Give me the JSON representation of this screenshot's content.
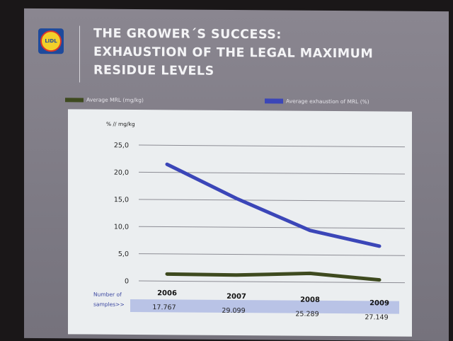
{
  "slide": {
    "title_lines": [
      "THE GROWER´S SUCCESS:",
      "EXHAUSTION OF THE LEGAL MAXIMUM",
      "RESIDUE LEVELS"
    ],
    "logo_text": "LIDL"
  },
  "colors": {
    "mrl_series": "#3e4a1f",
    "exhaustion_series": "#3b46b8",
    "samples_bar": "#b9c3e6"
  },
  "chart_data": {
    "type": "line",
    "title": "",
    "xlabel": "",
    "ylabel": "% // mg/kg",
    "ylim": [
      0,
      25
    ],
    "yticks": [
      {
        "value": 0,
        "label": "0"
      },
      {
        "value": 5,
        "label": "5,0"
      },
      {
        "value": 10,
        "label": "10,0"
      },
      {
        "value": 15,
        "label": "15,0"
      },
      {
        "value": 20,
        "label": "20,0"
      },
      {
        "value": 25,
        "label": "25,0"
      }
    ],
    "categories": [
      "2006",
      "2007",
      "2008",
      "2009"
    ],
    "series": [
      {
        "name": "Average MRL (mg/kg)",
        "values": [
          1.3,
          1.2,
          1.6,
          0.5
        ]
      },
      {
        "name": "Average exhaustion of MRL (%)",
        "values": [
          21.5,
          15.3,
          9.5,
          6.7
        ]
      }
    ],
    "grid": true,
    "legend": "top",
    "samples": {
      "label_line1": "Number of",
      "label_line2": "samples>>",
      "values": [
        "17.767",
        "29.099",
        "25.289",
        "27.149"
      ]
    }
  }
}
